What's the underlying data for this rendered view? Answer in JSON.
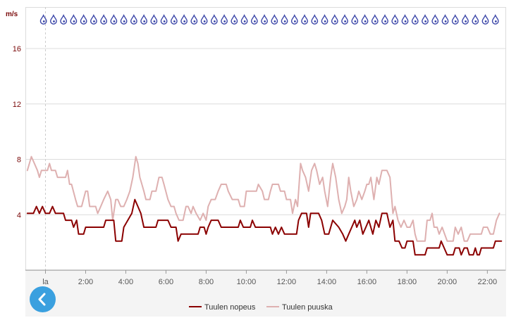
{
  "chart_data": {
    "type": "line",
    "ylabel": "m/s",
    "ylim": [
      0,
      19
    ],
    "yticks": [
      4,
      8,
      12,
      16
    ],
    "xlim": [
      -1.0,
      22.9
    ],
    "xticks": [
      {
        "x": 0,
        "label": "la"
      },
      {
        "x": 2,
        "label": "2:00"
      },
      {
        "x": 4,
        "label": "4:00"
      },
      {
        "x": 6,
        "label": "6:00"
      },
      {
        "x": 8,
        "label": "8:00"
      },
      {
        "x": 10,
        "label": "10:00"
      },
      {
        "x": 12,
        "label": "12:00"
      },
      {
        "x": 14,
        "label": "14:00"
      },
      {
        "x": 16,
        "label": "16:00"
      },
      {
        "x": 18,
        "label": "18:00"
      },
      {
        "x": 20,
        "label": "20:00"
      },
      {
        "x": 22,
        "label": "22:00"
      }
    ],
    "grid": true,
    "legend_position": "bottom",
    "symbol_row": {
      "icon": "raindrop-icon",
      "color": "#3b46a8",
      "y": 18.2,
      "x_start": -0.1,
      "x_step": 0.5,
      "count": 46
    },
    "series": [
      {
        "name": "Tuulen nopeus",
        "color": "#8b0000",
        "points": [
          [
            -0.9,
            4.1
          ],
          [
            -0.6,
            4.1
          ],
          [
            -0.45,
            4.6
          ],
          [
            -0.3,
            4.1
          ],
          [
            -0.15,
            4.6
          ],
          [
            0.0,
            4.1
          ],
          [
            0.2,
            4.1
          ],
          [
            0.35,
            4.6
          ],
          [
            0.5,
            4.1
          ],
          [
            0.9,
            4.1
          ],
          [
            1.0,
            3.6
          ],
          [
            1.3,
            3.6
          ],
          [
            1.4,
            3.1
          ],
          [
            1.55,
            3.6
          ],
          [
            1.65,
            2.6
          ],
          [
            1.9,
            2.6
          ],
          [
            2.0,
            3.1
          ],
          [
            2.9,
            3.1
          ],
          [
            3.0,
            3.6
          ],
          [
            3.4,
            3.6
          ],
          [
            3.5,
            2.1
          ],
          [
            3.8,
            2.1
          ],
          [
            3.9,
            3.1
          ],
          [
            4.1,
            3.6
          ],
          [
            4.3,
            4.1
          ],
          [
            4.45,
            5.1
          ],
          [
            4.6,
            4.6
          ],
          [
            4.75,
            4.1
          ],
          [
            4.9,
            3.1
          ],
          [
            5.5,
            3.1
          ],
          [
            5.6,
            3.6
          ],
          [
            6.1,
            3.6
          ],
          [
            6.25,
            3.1
          ],
          [
            6.5,
            3.1
          ],
          [
            6.6,
            2.1
          ],
          [
            6.75,
            2.6
          ],
          [
            7.6,
            2.6
          ],
          [
            7.7,
            3.1
          ],
          [
            7.9,
            3.1
          ],
          [
            8.0,
            2.6
          ],
          [
            8.1,
            3.1
          ],
          [
            8.25,
            3.6
          ],
          [
            8.6,
            3.6
          ],
          [
            8.75,
            3.1
          ],
          [
            9.6,
            3.1
          ],
          [
            9.7,
            3.6
          ],
          [
            9.85,
            3.1
          ],
          [
            10.2,
            3.1
          ],
          [
            10.3,
            3.6
          ],
          [
            10.45,
            3.1
          ],
          [
            11.2,
            3.1
          ],
          [
            11.3,
            2.6
          ],
          [
            11.45,
            3.1
          ],
          [
            11.6,
            2.6
          ],
          [
            11.75,
            3.1
          ],
          [
            11.9,
            2.6
          ],
          [
            12.5,
            2.6
          ],
          [
            12.6,
            3.6
          ],
          [
            12.75,
            4.1
          ],
          [
            13.0,
            4.1
          ],
          [
            13.1,
            3.1
          ],
          [
            13.2,
            4.1
          ],
          [
            13.6,
            4.1
          ],
          [
            13.75,
            3.6
          ],
          [
            13.9,
            2.6
          ],
          [
            14.1,
            2.6
          ],
          [
            14.3,
            3.6
          ],
          [
            14.6,
            3.1
          ],
          [
            14.8,
            2.6
          ],
          [
            14.95,
            2.1
          ],
          [
            15.1,
            2.6
          ],
          [
            15.25,
            3.1
          ],
          [
            15.4,
            3.6
          ],
          [
            15.5,
            3.1
          ],
          [
            15.65,
            3.6
          ],
          [
            15.8,
            2.6
          ],
          [
            15.95,
            3.1
          ],
          [
            16.1,
            3.6
          ],
          [
            16.3,
            2.6
          ],
          [
            16.45,
            3.6
          ],
          [
            16.6,
            3.1
          ],
          [
            16.75,
            4.1
          ],
          [
            17.0,
            4.1
          ],
          [
            17.15,
            3.1
          ],
          [
            17.3,
            3.6
          ],
          [
            17.4,
            2.1
          ],
          [
            17.6,
            2.1
          ],
          [
            17.75,
            1.6
          ],
          [
            17.9,
            1.6
          ],
          [
            18.0,
            2.1
          ],
          [
            18.3,
            2.1
          ],
          [
            18.4,
            1.1
          ],
          [
            18.9,
            1.1
          ],
          [
            19.0,
            1.6
          ],
          [
            19.6,
            1.6
          ],
          [
            19.7,
            2.1
          ],
          [
            19.85,
            1.6
          ],
          [
            20.0,
            1.1
          ],
          [
            20.3,
            1.1
          ],
          [
            20.4,
            1.6
          ],
          [
            20.6,
            1.6
          ],
          [
            20.7,
            1.1
          ],
          [
            20.85,
            1.6
          ],
          [
            21.0,
            1.6
          ],
          [
            21.1,
            1.1
          ],
          [
            21.3,
            1.1
          ],
          [
            21.4,
            1.6
          ],
          [
            21.5,
            1.1
          ],
          [
            21.6,
            1.1
          ],
          [
            21.7,
            1.6
          ],
          [
            22.3,
            1.6
          ],
          [
            22.4,
            2.1
          ],
          [
            22.7,
            2.1
          ]
        ]
      },
      {
        "name": "Tuulen puuska",
        "color": "#deb0b0",
        "points": [
          [
            -0.9,
            7.2
          ],
          [
            -0.8,
            7.7
          ],
          [
            -0.7,
            8.2
          ],
          [
            -0.55,
            7.7
          ],
          [
            -0.4,
            7.2
          ],
          [
            -0.3,
            6.7
          ],
          [
            -0.2,
            7.2
          ],
          [
            0.1,
            7.2
          ],
          [
            0.2,
            7.7
          ],
          [
            0.3,
            7.2
          ],
          [
            0.5,
            7.2
          ],
          [
            0.6,
            6.7
          ],
          [
            1.0,
            6.7
          ],
          [
            1.1,
            7.2
          ],
          [
            1.2,
            6.2
          ],
          [
            1.3,
            6.2
          ],
          [
            1.5,
            5.1
          ],
          [
            1.6,
            4.6
          ],
          [
            1.8,
            4.6
          ],
          [
            2.0,
            5.7
          ],
          [
            2.1,
            5.7
          ],
          [
            2.2,
            4.6
          ],
          [
            2.5,
            4.6
          ],
          [
            2.6,
            4.1
          ],
          [
            2.75,
            4.6
          ],
          [
            2.9,
            5.1
          ],
          [
            3.1,
            5.7
          ],
          [
            3.25,
            5.1
          ],
          [
            3.35,
            3.6
          ],
          [
            3.5,
            5.1
          ],
          [
            3.6,
            5.1
          ],
          [
            3.75,
            4.6
          ],
          [
            3.9,
            4.6
          ],
          [
            4.05,
            5.1
          ],
          [
            4.2,
            5.7
          ],
          [
            4.35,
            6.7
          ],
          [
            4.5,
            8.2
          ],
          [
            4.6,
            7.7
          ],
          [
            4.7,
            6.7
          ],
          [
            4.8,
            6.2
          ],
          [
            4.9,
            5.7
          ],
          [
            5.0,
            5.1
          ],
          [
            5.2,
            5.1
          ],
          [
            5.3,
            5.7
          ],
          [
            5.5,
            5.7
          ],
          [
            5.65,
            6.7
          ],
          [
            5.8,
            6.7
          ],
          [
            5.9,
            6.2
          ],
          [
            6.1,
            5.1
          ],
          [
            6.25,
            4.6
          ],
          [
            6.4,
            4.6
          ],
          [
            6.5,
            4.1
          ],
          [
            6.65,
            3.6
          ],
          [
            6.85,
            3.6
          ],
          [
            7.0,
            4.6
          ],
          [
            7.1,
            4.6
          ],
          [
            7.25,
            4.1
          ],
          [
            7.35,
            4.6
          ],
          [
            7.5,
            4.1
          ],
          [
            7.7,
            3.6
          ],
          [
            7.85,
            4.1
          ],
          [
            8.0,
            3.6
          ],
          [
            8.1,
            4.6
          ],
          [
            8.25,
            5.1
          ],
          [
            8.45,
            5.1
          ],
          [
            8.6,
            5.7
          ],
          [
            8.75,
            6.2
          ],
          [
            9.0,
            6.2
          ],
          [
            9.1,
            5.7
          ],
          [
            9.3,
            5.1
          ],
          [
            9.6,
            5.1
          ],
          [
            9.7,
            4.6
          ],
          [
            9.9,
            4.6
          ],
          [
            10.0,
            5.7
          ],
          [
            10.5,
            5.7
          ],
          [
            10.6,
            6.2
          ],
          [
            10.8,
            5.7
          ],
          [
            10.9,
            5.1
          ],
          [
            11.1,
            5.1
          ],
          [
            11.2,
            5.7
          ],
          [
            11.3,
            6.2
          ],
          [
            11.6,
            6.2
          ],
          [
            11.7,
            5.7
          ],
          [
            11.9,
            5.7
          ],
          [
            12.0,
            5.1
          ],
          [
            12.2,
            5.1
          ],
          [
            12.3,
            4.1
          ],
          [
            12.45,
            5.1
          ],
          [
            12.55,
            4.6
          ],
          [
            12.7,
            7.7
          ],
          [
            12.8,
            7.2
          ],
          [
            12.95,
            6.7
          ],
          [
            13.1,
            5.7
          ],
          [
            13.25,
            7.2
          ],
          [
            13.4,
            7.7
          ],
          [
            13.5,
            7.2
          ],
          [
            13.65,
            6.2
          ],
          [
            13.8,
            6.7
          ],
          [
            13.9,
            5.7
          ],
          [
            14.05,
            4.6
          ],
          [
            14.2,
            6.7
          ],
          [
            14.3,
            7.7
          ],
          [
            14.45,
            6.7
          ],
          [
            14.6,
            5.1
          ],
          [
            14.75,
            4.1
          ],
          [
            14.9,
            4.6
          ],
          [
            15.0,
            5.1
          ],
          [
            15.1,
            6.7
          ],
          [
            15.2,
            5.7
          ],
          [
            15.35,
            4.6
          ],
          [
            15.5,
            5.1
          ],
          [
            15.6,
            5.7
          ],
          [
            15.75,
            5.1
          ],
          [
            15.9,
            5.7
          ],
          [
            16.0,
            6.2
          ],
          [
            16.1,
            6.2
          ],
          [
            16.2,
            6.7
          ],
          [
            16.35,
            5.1
          ],
          [
            16.5,
            6.7
          ],
          [
            16.6,
            6.2
          ],
          [
            16.75,
            7.2
          ],
          [
            17.0,
            7.2
          ],
          [
            17.15,
            6.7
          ],
          [
            17.3,
            4.1
          ],
          [
            17.4,
            4.6
          ],
          [
            17.55,
            3.6
          ],
          [
            17.7,
            3.1
          ],
          [
            17.85,
            3.6
          ],
          [
            18.0,
            3.1
          ],
          [
            18.15,
            3.1
          ],
          [
            18.3,
            3.6
          ],
          [
            18.4,
            2.6
          ],
          [
            18.5,
            2.1
          ],
          [
            18.9,
            2.1
          ],
          [
            19.0,
            3.6
          ],
          [
            19.15,
            3.6
          ],
          [
            19.25,
            4.1
          ],
          [
            19.35,
            3.1
          ],
          [
            19.5,
            3.1
          ],
          [
            19.6,
            2.6
          ],
          [
            19.75,
            3.1
          ],
          [
            20.0,
            2.1
          ],
          [
            20.3,
            2.1
          ],
          [
            20.4,
            3.1
          ],
          [
            20.55,
            2.6
          ],
          [
            20.7,
            3.1
          ],
          [
            20.85,
            2.1
          ],
          [
            21.0,
            2.1
          ],
          [
            21.15,
            2.6
          ],
          [
            21.6,
            2.6
          ],
          [
            21.7,
            2.6
          ],
          [
            21.8,
            3.1
          ],
          [
            22.0,
            3.1
          ],
          [
            22.15,
            2.6
          ],
          [
            22.3,
            2.6
          ],
          [
            22.45,
            3.6
          ],
          [
            22.6,
            4.1
          ]
        ]
      }
    ]
  },
  "colors": {
    "axis_label": "#7a0a0a",
    "grid": "#dcdcdc",
    "footer_bg": "#f4f4f4",
    "back_button": "#3aa0df"
  },
  "back_button": {
    "icon": "chevron-left-icon"
  }
}
